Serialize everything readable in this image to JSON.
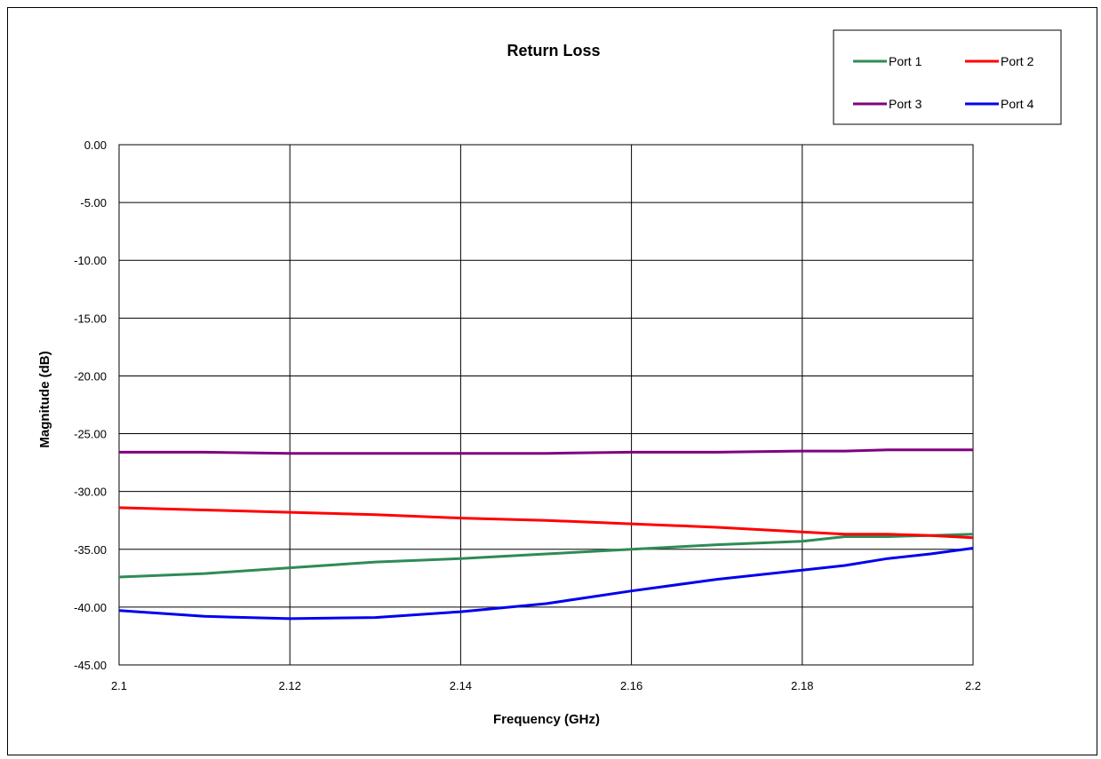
{
  "chart_data": {
    "type": "line",
    "title": "Return Loss",
    "xlabel": "Frequency (GHz)",
    "ylabel": "Magnitude (dB)",
    "xlim": [
      2.1,
      2.2
    ],
    "ylim": [
      -45,
      0
    ],
    "x_ticks": [
      "2.1",
      "2.12",
      "2.14",
      "2.16",
      "2.18",
      "2.2"
    ],
    "y_ticks": [
      "0.00",
      "-5.00",
      "-10.00",
      "-15.00",
      "-20.00",
      "-25.00",
      "-30.00",
      "-35.00",
      "-40.00",
      "-45.00"
    ],
    "grid": true,
    "legend_position": "top-right",
    "x": [
      2.1,
      2.11,
      2.12,
      2.13,
      2.14,
      2.15,
      2.16,
      2.17,
      2.18,
      2.185,
      2.19,
      2.195,
      2.2
    ],
    "series": [
      {
        "name": "Port 1",
        "color": "#2e8b57",
        "values": [
          -37.4,
          -37.1,
          -36.6,
          -36.1,
          -35.8,
          -35.4,
          -35.0,
          -34.6,
          -34.3,
          -33.9,
          -33.9,
          -33.8,
          -33.7
        ]
      },
      {
        "name": "Port 2",
        "color": "#ff0000",
        "values": [
          -31.4,
          -31.6,
          -31.8,
          -32.0,
          -32.3,
          -32.5,
          -32.8,
          -33.1,
          -33.5,
          -33.7,
          -33.7,
          -33.8,
          -34.0
        ]
      },
      {
        "name": "Port 3",
        "color": "#800080",
        "values": [
          -26.6,
          -26.6,
          -26.7,
          -26.7,
          -26.7,
          -26.7,
          -26.6,
          -26.6,
          -26.5,
          -26.5,
          -26.4,
          -26.4,
          -26.4
        ]
      },
      {
        "name": "Port 4",
        "color": "#0000ee",
        "values": [
          -40.3,
          -40.8,
          -41.0,
          -40.9,
          -40.4,
          -39.7,
          -38.6,
          -37.6,
          -36.8,
          -36.4,
          -35.8,
          -35.4,
          -34.9
        ]
      }
    ]
  }
}
